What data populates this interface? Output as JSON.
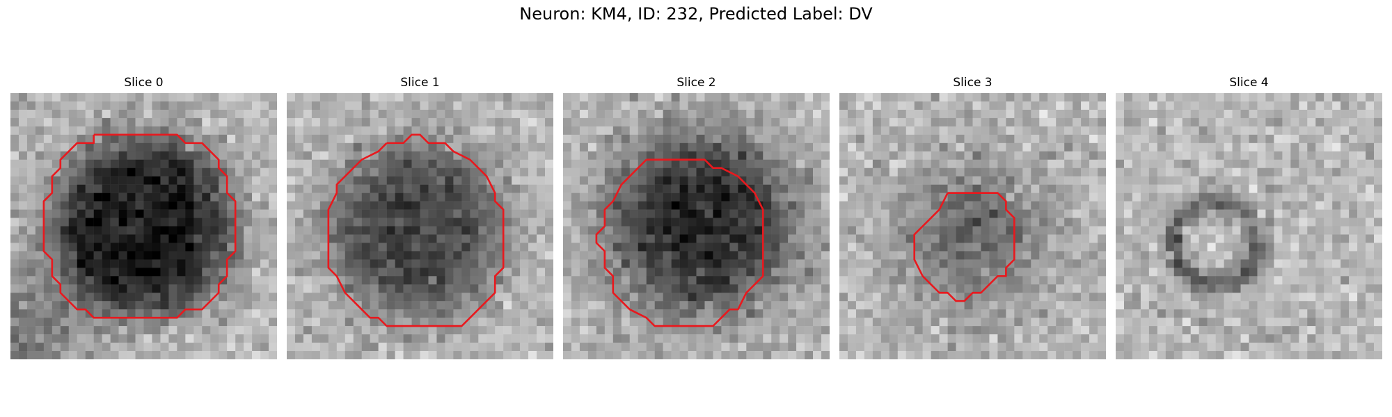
{
  "figure": {
    "title": "Neuron: KM4, ID: 232, Predicted Label: DV"
  },
  "panels": [
    {
      "title": "Slice 0",
      "has_outline": true
    },
    {
      "title": "Slice 1",
      "has_outline": true
    },
    {
      "title": "Slice 2",
      "has_outline": true
    },
    {
      "title": "Slice 3",
      "has_outline": true
    },
    {
      "title": "Slice 4",
      "has_outline": false
    }
  ],
  "colors": {
    "outline": "#e8191e",
    "background": "#ffffff"
  },
  "image_style": "grayscale-noise-microscopy"
}
